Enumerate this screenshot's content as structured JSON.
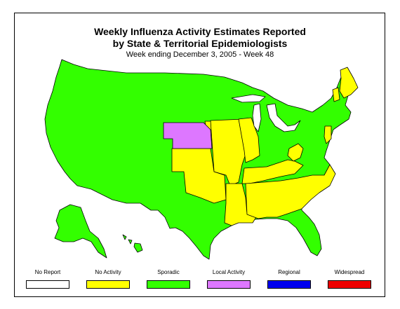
{
  "title_line1": "Weekly Influenza Activity Estimates Reported",
  "title_line2": "by State & Territorial Epidemiologists",
  "subtitle": "Week ending December 3, 2005 - Week 48",
  "colors": {
    "no_report": "#ffffff",
    "no_activity": "#ffff00",
    "sporadic": "#33ff00",
    "local": "#dd77ff",
    "regional": "#0000ee",
    "widespread": "#ee0000",
    "border": "#000000"
  },
  "legend": [
    {
      "label": "No Report",
      "color": "#ffffff"
    },
    {
      "label": "No Activity",
      "color": "#ffff00"
    },
    {
      "label": "Sporadic",
      "color": "#33ff00"
    },
    {
      "label": "Local Activity",
      "color": "#dd77ff"
    },
    {
      "label": "Regional",
      "color": "#0000ee"
    },
    {
      "label": "Widespread",
      "color": "#ee0000"
    }
  ]
}
